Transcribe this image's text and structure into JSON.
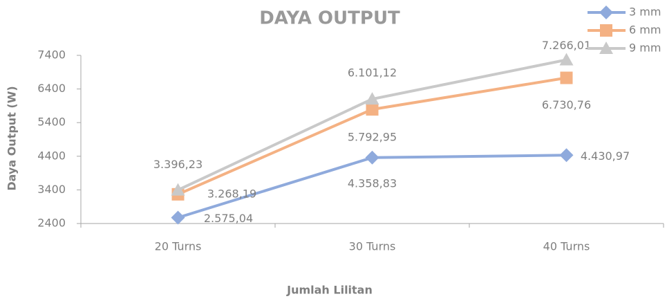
{
  "chart_data": {
    "type": "line",
    "title": "DAYA OUTPUT",
    "x_label": "Jumlah Lilitan",
    "y_label": "Daya Output (W)",
    "categories": [
      "20 Turns",
      "30 Turns",
      "40 Turns"
    ],
    "series": [
      {
        "name": "3 mm",
        "color": "#8faadc",
        "values": [
          2575.04,
          4358.83,
          4430.97
        ],
        "value_labels": [
          "2.575,04",
          "4.358,83",
          "4.430,97"
        ]
      },
      {
        "name": "6 mm",
        "color": "#f4b183",
        "values": [
          3268.19,
          5792.95,
          6730.76
        ],
        "value_labels": [
          "3.268,19",
          "5.792,95",
          "6.730,76"
        ]
      },
      {
        "name": "9 mm",
        "color": "#c9c9c9",
        "values": [
          3396.23,
          6101.12,
          7266.01
        ],
        "value_labels": [
          "3.396,23",
          "6.101,12",
          "7.266,01"
        ]
      }
    ],
    "ylim": [
      2400,
      7400
    ],
    "yticks": [
      2400,
      3400,
      4400,
      5400,
      6400,
      7400
    ],
    "legend": "top-right"
  }
}
